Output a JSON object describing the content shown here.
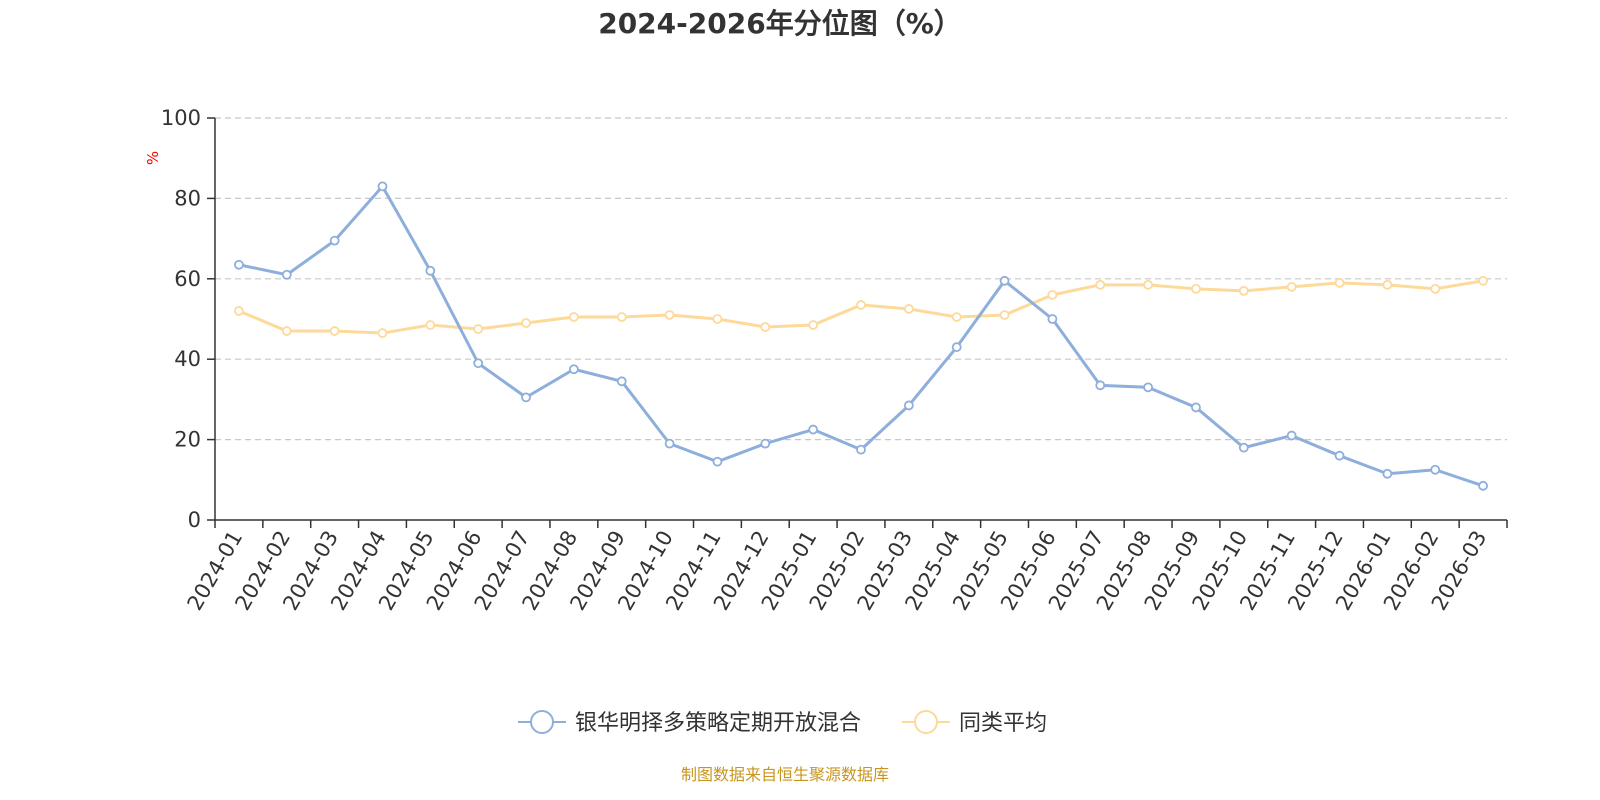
{
  "chart_data": {
    "type": "line",
    "title": "2024-2026年分位图（%）",
    "y_unit": "%",
    "ylim": [
      0,
      100
    ],
    "y_ticks": [
      0,
      20,
      40,
      60,
      80,
      100
    ],
    "grid": "horizontal dashed",
    "legend_position": "bottom",
    "categories": [
      "2024-01",
      "2024-02",
      "2024-03",
      "2024-04",
      "2024-05",
      "2024-06",
      "2024-07",
      "2024-08",
      "2024-09",
      "2024-10",
      "2024-11",
      "2024-12",
      "2025-01",
      "2025-02",
      "2025-03",
      "2025-04",
      "2025-05",
      "2025-06",
      "2025-07",
      "2025-08",
      "2025-09",
      "2025-10",
      "2025-11",
      "2025-12",
      "2026-01",
      "2026-02",
      "2026-03"
    ],
    "series": [
      {
        "name": "银华明择多策略定期开放混合",
        "color": "#8eaedb",
        "values": [
          63.5,
          61,
          69.5,
          83,
          62,
          39,
          30.5,
          37.5,
          34.5,
          19,
          14.5,
          19,
          22.5,
          17.5,
          28.5,
          43,
          59.5,
          50,
          33.5,
          33,
          28,
          18,
          21,
          16,
          11.5,
          12.5,
          8.5
        ]
      },
      {
        "name": "同类平均",
        "color": "#fdd99a",
        "values": [
          52,
          47,
          47,
          46.5,
          48.5,
          47.5,
          49,
          50.5,
          50.5,
          51,
          50,
          48,
          48.5,
          53.5,
          52.5,
          50.5,
          51,
          56,
          58.5,
          58.5,
          57.5,
          57,
          58,
          59,
          58.5,
          57.5,
          59.5
        ]
      }
    ],
    "source_note": "制图数据来自恒生聚源数据库"
  }
}
